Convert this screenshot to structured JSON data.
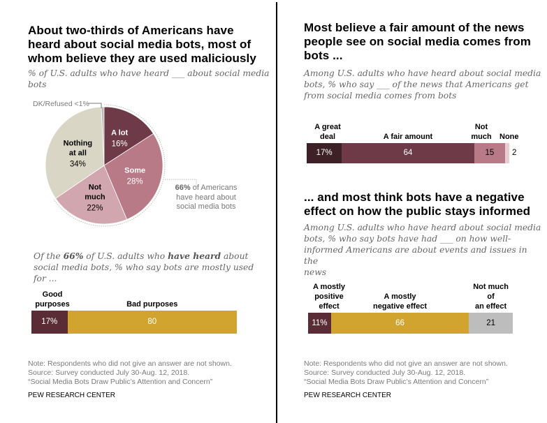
{
  "left": {
    "title": "About two-thirds of Americans have heard about social media bots, most of whom believe they are used maliciously",
    "title_lines": [
      "About two-thirds of Americans have",
      "heard about social media bots, most of",
      "whom believe they are used maliciously"
    ],
    "subtitle_lines": [
      "% of U.S. adults who have heard ___ about social media",
      "bots"
    ],
    "pie_annotation": {
      "bold": "66%",
      "rest_line1": " of Americans",
      "line2": "have heard about",
      "line3": "social media bots"
    },
    "bar_subtitle": {
      "line1_pre": "Of the ",
      "line1_bold1": "66%",
      "line1_mid": " of U.S. adults who ",
      "line1_bold2": "have heard",
      "line1_post": " about",
      "line2": "social media bots, % who say bots are mostly used",
      "line3": "for ..."
    },
    "note_lines": [
      "Note: Respondents who did not give an answer are not shown.",
      "Source: Survey conducted July 30-Aug. 12, 2018.",
      "“Social Media Bots Draw Public’s Attention and Concern”"
    ],
    "brand": "PEW RESEARCH CENTER"
  },
  "right": {
    "title1_lines": [
      "Most believe a fair amount of the news",
      "people see on social media comes from",
      "bots ..."
    ],
    "subtitle1_lines": [
      "Among U.S. adults who have heard about social media",
      "bots, % who say ___ of the news that Americans get",
      "from social media comes from bots"
    ],
    "title2_lines": [
      "... and most think bots have a negative",
      "effect on how the public stays informed"
    ],
    "subtitle2_lines": [
      "Among U.S. adults who have heard about social media",
      "bots, % who say bots have had ___ on how well-",
      "informed Americans are about events and issues in the",
      "news"
    ],
    "note_lines": [
      "Note: Respondents who did not give an answer are not shown.",
      "Source: Survey conducted July 30-Aug. 12, 2018.",
      "“Social Media Bots Draw Public’s Attention and Concern”"
    ],
    "brand": "PEW RESEARCH CENTER"
  },
  "chart_data": [
    {
      "type": "pie",
      "title": "% of U.S. adults who have heard ___ about social media bots",
      "slices": [
        {
          "label": "DK/Refused",
          "value": 0.8,
          "display": "<1%",
          "color": "#b9b9b9"
        },
        {
          "label": "A lot",
          "value": 16,
          "display": "16%",
          "color": "#6e3a47",
          "label_lines": [
            "A lot"
          ]
        },
        {
          "label": "Some",
          "value": 28,
          "display": "28%",
          "color": "#b77a86",
          "label_lines": [
            "Some"
          ]
        },
        {
          "label": "Not much",
          "value": 22,
          "display": "22%",
          "color": "#d2a6ae",
          "label_lines": [
            "Not",
            "much"
          ]
        },
        {
          "label": "Nothing at all",
          "value": 34,
          "display": "34%",
          "color": "#dad6c6",
          "label_lines": [
            "Nothing",
            "at all"
          ]
        }
      ],
      "external_label": "DK/Refused <1%",
      "annotation": "66% of Americans have heard about social media bots"
    },
    {
      "type": "bar",
      "orientation": "horizontal-stacked",
      "title": "Of the 66% of U.S. adults who have heard about social media bots, % who say bots are mostly used for ...",
      "categories": [
        "Good purposes",
        "Bad purposes"
      ],
      "category_lines": [
        [
          "Good",
          "purposes"
        ],
        [
          "Bad purposes"
        ]
      ],
      "values": [
        17,
        80
      ],
      "labels": [
        "17%",
        "80"
      ],
      "colors": [
        "#5a2d36",
        "#d1a42f"
      ],
      "label_colors": [
        "#ffffff",
        "#ffffff"
      ]
    },
    {
      "type": "bar",
      "orientation": "horizontal-stacked",
      "title": "Among U.S. adults who have heard about social media bots, % who say ___ of the news that Americans get from social media comes from bots",
      "categories": [
        "A great deal",
        "A fair amount",
        "Not much",
        "None"
      ],
      "category_lines": [
        [
          "A great",
          "deal"
        ],
        [
          "A fair amount"
        ],
        [
          "Not",
          "much"
        ],
        [
          "None"
        ]
      ],
      "values": [
        17,
        64,
        15,
        2
      ],
      "labels": [
        "17%",
        "64",
        "15",
        "2"
      ],
      "colors": [
        "#3e2127",
        "#6e3a47",
        "#b77a86",
        "#e8cdd2"
      ],
      "label_colors": [
        "#ffffff",
        "#ffffff",
        "#000000",
        "#000000"
      ]
    },
    {
      "type": "bar",
      "orientation": "horizontal-stacked",
      "title": "Among U.S. adults who have heard about social media bots, % who say bots have had ___ on how well-informed Americans are about events and issues in the news",
      "categories": [
        "A mostly positive effect",
        "A mostly negative effect",
        "Not much of an effect"
      ],
      "category_lines": [
        [
          "A mostly",
          "positive effect"
        ],
        [
          "A mostly",
          "negative effect"
        ],
        [
          "Not much of",
          "an effect"
        ]
      ],
      "values": [
        11,
        66,
        21
      ],
      "labels": [
        "11%",
        "66",
        "21"
      ],
      "colors": [
        "#5a2d36",
        "#d1a42f",
        "#bdbdbd"
      ],
      "label_colors": [
        "#ffffff",
        "#ffffff",
        "#000000"
      ]
    }
  ]
}
